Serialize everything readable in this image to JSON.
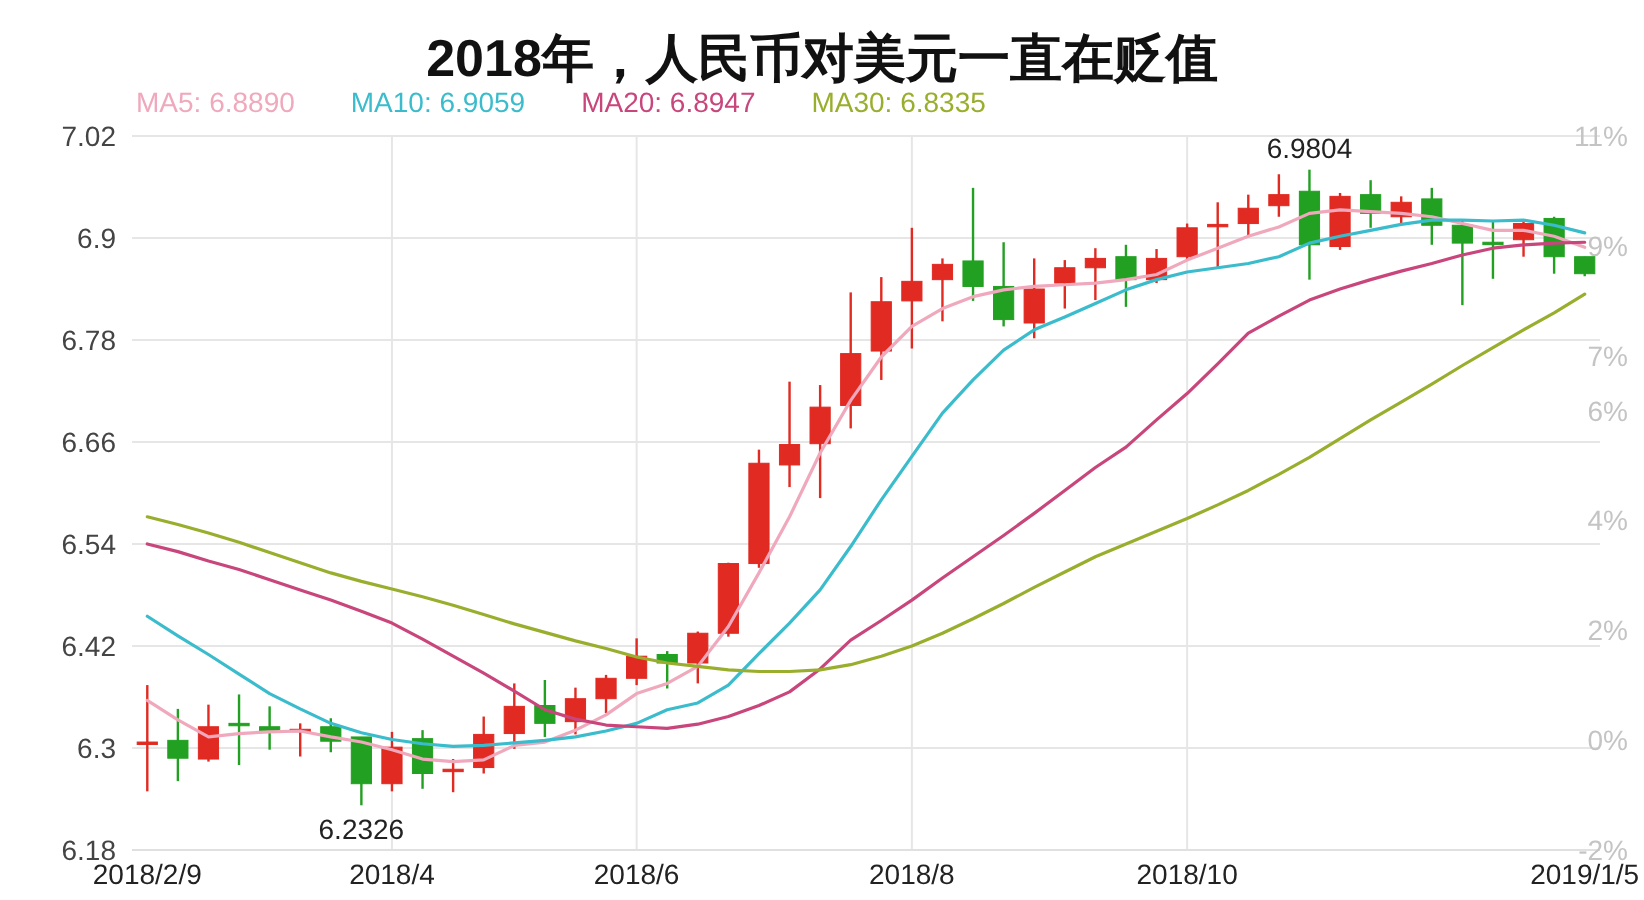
{
  "chart_data": {
    "type": "candlestick",
    "title": "2018年，人民币对美元一直在贬值",
    "categories": [
      "2018/2/9",
      null,
      null,
      null,
      null,
      null,
      null,
      null,
      "2018/4",
      null,
      null,
      null,
      null,
      null,
      null,
      null,
      "2018/6",
      null,
      null,
      null,
      null,
      null,
      null,
      null,
      null,
      "2018/8",
      null,
      null,
      null,
      null,
      null,
      null,
      null,
      null,
      "2018/10",
      null,
      null,
      null,
      null,
      null,
      null,
      null,
      null,
      null,
      null,
      null,
      null,
      "2019/1/5"
    ],
    "ohlc": [
      [
        6.305,
        6.374,
        6.249,
        6.307
      ],
      [
        6.309,
        6.346,
        6.261,
        6.288
      ],
      [
        6.287,
        6.351,
        6.284,
        6.325
      ],
      [
        6.329,
        6.363,
        6.28,
        6.327
      ],
      [
        6.325,
        6.349,
        6.298,
        6.32
      ],
      [
        6.32,
        6.329,
        6.29,
        6.322
      ],
      [
        6.325,
        6.335,
        6.295,
        6.308
      ],
      [
        6.313,
        6.313,
        6.2326,
        6.258
      ],
      [
        6.258,
        6.319,
        6.249,
        6.301
      ],
      [
        6.311,
        6.321,
        6.252,
        6.27
      ],
      [
        6.273,
        6.287,
        6.248,
        6.275
      ],
      [
        6.277,
        6.337,
        6.27,
        6.316
      ],
      [
        6.317,
        6.376,
        6.299,
        6.349
      ],
      [
        6.35,
        6.38,
        6.313,
        6.329
      ],
      [
        6.331,
        6.371,
        6.316,
        6.358
      ],
      [
        6.358,
        6.386,
        6.341,
        6.382
      ],
      [
        6.382,
        6.429,
        6.374,
        6.408
      ],
      [
        6.41,
        6.414,
        6.37,
        6.4
      ],
      [
        6.4,
        6.437,
        6.376,
        6.435
      ],
      [
        6.435,
        6.518,
        6.431,
        6.517
      ],
      [
        6.517,
        6.651,
        6.512,
        6.635
      ],
      [
        6.633,
        6.731,
        6.607,
        6.657
      ],
      [
        6.658,
        6.727,
        6.594,
        6.701
      ],
      [
        6.703,
        6.836,
        6.676,
        6.764
      ],
      [
        6.767,
        6.854,
        6.733,
        6.825
      ],
      [
        6.826,
        6.912,
        6.77,
        6.849
      ],
      [
        6.851,
        6.876,
        6.802,
        6.869
      ],
      [
        6.873,
        6.959,
        6.826,
        6.843
      ],
      [
        6.843,
        6.895,
        6.796,
        6.804
      ],
      [
        6.8,
        6.876,
        6.782,
        6.84
      ],
      [
        6.847,
        6.874,
        6.817,
        6.865
      ],
      [
        6.865,
        6.888,
        6.827,
        6.876
      ],
      [
        6.878,
        6.892,
        6.819,
        6.851
      ],
      [
        6.851,
        6.887,
        6.847,
        6.876
      ],
      [
        6.878,
        6.917,
        6.874,
        6.912
      ],
      [
        6.914,
        6.942,
        6.866,
        6.916
      ],
      [
        6.917,
        6.951,
        6.902,
        6.935
      ],
      [
        6.938,
        6.975,
        6.925,
        6.951
      ],
      [
        6.955,
        6.9804,
        6.851,
        6.892
      ],
      [
        6.89,
        6.953,
        6.886,
        6.949
      ],
      [
        6.951,
        6.968,
        6.912,
        6.929
      ],
      [
        6.925,
        6.949,
        6.917,
        6.942
      ],
      [
        6.946,
        6.959,
        6.892,
        6.915
      ],
      [
        6.915,
        6.921,
        6.821,
        6.894
      ],
      [
        6.895,
        6.921,
        6.852,
        6.893
      ],
      [
        6.898,
        6.921,
        6.878,
        6.917
      ],
      [
        6.923,
        6.925,
        6.858,
        6.878
      ],
      [
        6.878,
        6.878,
        6.855,
        6.858
      ]
    ],
    "colors": [
      "#e02a22",
      "#22a022",
      "#e02a22",
      "#22a022",
      "#22a022",
      "#e02a22",
      "#22a022",
      "#22a022",
      "#e02a22",
      "#22a022",
      "#e02a22",
      "#e02a22",
      "#e02a22",
      "#22a022",
      "#e02a22",
      "#e02a22",
      "#e02a22",
      "#22a022",
      "#e02a22",
      "#e02a22",
      "#e02a22",
      "#e02a22",
      "#e02a22",
      "#e02a22",
      "#e02a22",
      "#e02a22",
      "#e02a22",
      "#22a022",
      "#22a022",
      "#e02a22",
      "#e02a22",
      "#e02a22",
      "#22a022",
      "#e02a22",
      "#e02a22",
      "#e02a22",
      "#e02a22",
      "#e02a22",
      "#22a022",
      "#e02a22",
      "#22a022",
      "#e02a22",
      "#22a022",
      "#22a022",
      "#22a022",
      "#e02a22",
      "#22a022",
      "#22a022"
    ],
    "series": [
      {
        "type": "line",
        "name": "MA5: 6.8890",
        "color": "#f0a8bc",
        "values": [
          6.356,
          6.333,
          6.313,
          6.317,
          6.319,
          6.32,
          6.313,
          6.307,
          6.298,
          6.287,
          6.284,
          6.286,
          6.303,
          6.307,
          6.321,
          6.339,
          6.364,
          6.376,
          6.396,
          6.443,
          6.506,
          6.572,
          6.647,
          6.709,
          6.76,
          6.796,
          6.817,
          6.831,
          6.839,
          6.843,
          6.845,
          6.847,
          6.851,
          6.857,
          6.874,
          6.888,
          6.902,
          6.913,
          6.929,
          6.933,
          6.931,
          6.929,
          6.925,
          6.917,
          6.909,
          6.909,
          6.902,
          6.889
        ]
      },
      {
        "type": "line",
        "name": "MA10: 6.9059",
        "color": "#3bbccc",
        "values": [
          6.455,
          6.432,
          6.41,
          6.387,
          6.364,
          6.346,
          6.329,
          6.318,
          6.31,
          6.305,
          6.302,
          6.303,
          6.306,
          6.309,
          6.313,
          6.32,
          6.329,
          6.345,
          6.353,
          6.374,
          6.411,
          6.447,
          6.486,
          6.537,
          6.592,
          6.643,
          6.694,
          6.733,
          6.768,
          6.792,
          6.807,
          6.823,
          6.839,
          6.851,
          6.86,
          6.865,
          6.87,
          6.878,
          6.894,
          6.902,
          6.909,
          6.916,
          6.921,
          6.921,
          6.92,
          6.921,
          6.915,
          6.906
        ]
      },
      {
        "type": "line",
        "name": "MA20: 6.8947",
        "color": "#c8467c",
        "values": [
          6.54,
          6.531,
          6.52,
          6.51,
          6.498,
          6.486,
          6.474,
          6.461,
          6.447,
          6.428,
          6.408,
          6.388,
          6.367,
          6.345,
          6.334,
          6.327,
          6.325,
          6.323,
          6.328,
          6.337,
          6.35,
          6.366,
          6.393,
          6.427,
          6.45,
          6.474,
          6.5,
          6.525,
          6.55,
          6.576,
          6.603,
          6.63,
          6.654,
          6.686,
          6.717,
          6.752,
          6.788,
          6.808,
          6.827,
          6.84,
          6.851,
          6.861,
          6.87,
          6.88,
          6.888,
          6.892,
          6.894,
          6.895
        ]
      },
      {
        "type": "line",
        "name": "MA30: 6.8335",
        "color": "#9aae2e",
        "values": [
          6.572,
          6.563,
          6.553,
          6.542,
          6.53,
          6.518,
          6.506,
          6.496,
          6.487,
          6.478,
          6.468,
          6.457,
          6.446,
          6.436,
          6.426,
          6.417,
          6.407,
          6.4,
          6.396,
          6.392,
          6.39,
          6.39,
          6.392,
          6.398,
          6.408,
          6.42,
          6.435,
          6.452,
          6.47,
          6.489,
          6.507,
          6.525,
          6.54,
          6.555,
          6.57,
          6.586,
          6.603,
          6.622,
          6.642,
          6.664,
          6.686,
          6.707,
          6.728,
          6.75,
          6.771,
          6.792,
          6.812,
          6.834
        ]
      }
    ],
    "ylim": [
      6.18,
      7.02
    ],
    "yticks": [
      6.18,
      6.3,
      6.42,
      6.54,
      6.66,
      6.78,
      6.9,
      7.02
    ],
    "y2lim": [
      -2,
      11
    ],
    "y2ticks": [
      {
        "value": -2,
        "label": "-2%"
      },
      {
        "value": 0,
        "label": "0%"
      },
      {
        "value": 2,
        "label": "2%"
      },
      {
        "value": 4,
        "label": "4%"
      },
      {
        "value": 6,
        "label": "6%"
      },
      {
        "value": 7,
        "label": "7%"
      },
      {
        "value": 9,
        "label": "9%"
      },
      {
        "value": 11,
        "label": "11%"
      }
    ],
    "annotations": [
      {
        "text": "6.2326",
        "y": 6.2326
      },
      {
        "text": "6.9804",
        "y": 6.9804
      }
    ],
    "grid": true,
    "legend": "top"
  }
}
